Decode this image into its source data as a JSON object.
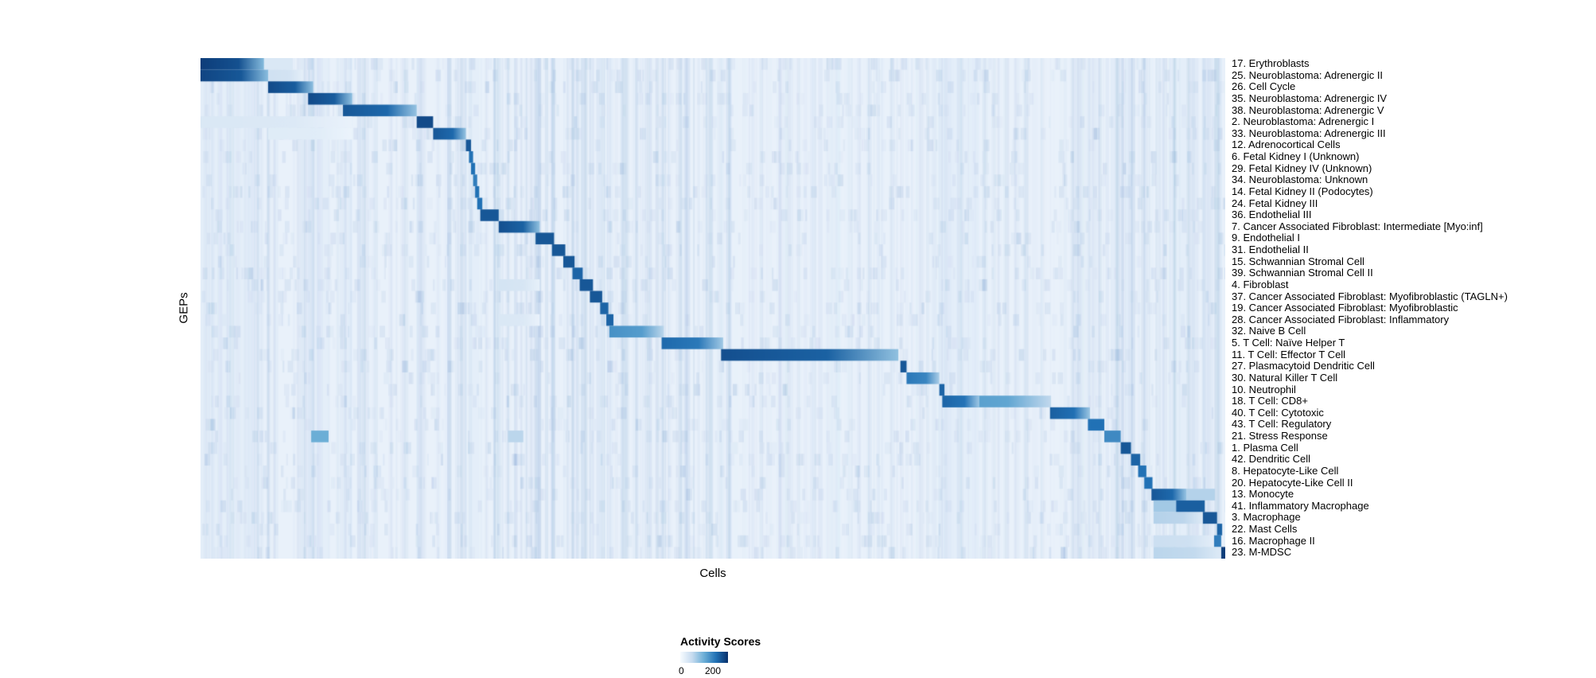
{
  "figure": {
    "background": "#ffffff"
  },
  "chart_data": {
    "type": "heatmap",
    "title": "",
    "xlabel": "Cells",
    "ylabel": "GEPs",
    "grid": false,
    "legend_position": "bottom",
    "background_color": "#eef4fb",
    "colorbar": {
      "title": "Activity Scores",
      "min": "0",
      "max": "200",
      "colors": [
        "#f7fbff",
        "#c6dbef",
        "#6baed6",
        "#2171b5",
        "#08306b"
      ]
    },
    "rows": [
      {
        "label": "17. Erythroblasts",
        "segments": [
          [
            0.0,
            0.062,
            0.95
          ],
          [
            0.062,
            0.09,
            0.15
          ]
        ]
      },
      {
        "label": "25. Neuroblastoma: Adrenergic II",
        "segments": [
          [
            0.0,
            0.066,
            0.92
          ],
          [
            0.066,
            0.1,
            0.2
          ]
        ]
      },
      {
        "label": "26. Cell Cycle",
        "segments": [
          [
            0.066,
            0.11,
            0.9
          ]
        ]
      },
      {
        "label": "35. Neuroblastoma: Adrenergic IV",
        "segments": [
          [
            0.105,
            0.148,
            0.9
          ]
        ]
      },
      {
        "label": "38. Neuroblastoma: Adrenergic V",
        "segments": [
          [
            0.139,
            0.211,
            0.85
          ]
        ]
      },
      {
        "label": "2. Neuroblastoma: Adrenergic I",
        "segments": [
          [
            0.211,
            0.227,
            0.9
          ],
          [
            0.0,
            0.148,
            0.15
          ]
        ]
      },
      {
        "label": "33. Neuroblastoma: Adrenergic III",
        "segments": [
          [
            0.227,
            0.259,
            0.85
          ],
          [
            0.066,
            0.148,
            0.12
          ]
        ]
      },
      {
        "label": "12. Adrenocortical Cells",
        "segments": [
          [
            0.259,
            0.264,
            0.85
          ]
        ]
      },
      {
        "label": "6. Fetal Kidney I (Unknown)",
        "segments": [
          [
            0.262,
            0.266,
            0.75
          ]
        ]
      },
      {
        "label": "29. Fetal Kidney IV (Unknown)",
        "segments": [
          [
            0.264,
            0.268,
            0.75
          ]
        ]
      },
      {
        "label": "34. Neuroblastoma: Unknown",
        "segments": [
          [
            0.266,
            0.27,
            0.7
          ]
        ]
      },
      {
        "label": "14. Fetal Kidney II (Podocytes)",
        "segments": [
          [
            0.268,
            0.272,
            0.75
          ]
        ]
      },
      {
        "label": "24. Fetal Kidney III",
        "segments": [
          [
            0.27,
            0.275,
            0.75
          ]
        ]
      },
      {
        "label": "36. Endothelial III",
        "segments": [
          [
            0.273,
            0.291,
            0.85
          ]
        ]
      },
      {
        "label": "7. Cancer Associated Fibroblast: Intermediate [Myo:inf]",
        "segments": [
          [
            0.291,
            0.331,
            0.88
          ]
        ]
      },
      {
        "label": "9. Endothelial I",
        "segments": [
          [
            0.327,
            0.345,
            0.85
          ]
        ]
      },
      {
        "label": "31. Endothelial II",
        "segments": [
          [
            0.343,
            0.356,
            0.85
          ]
        ]
      },
      {
        "label": "15. Schwannian Stromal Cell",
        "segments": [
          [
            0.354,
            0.365,
            0.85
          ]
        ]
      },
      {
        "label": "39. Schwannian Stromal Cell II",
        "segments": [
          [
            0.363,
            0.373,
            0.8
          ]
        ]
      },
      {
        "label": "4. Fibroblast",
        "segments": [
          [
            0.37,
            0.383,
            0.85
          ],
          [
            0.291,
            0.331,
            0.18
          ]
        ]
      },
      {
        "label": "37. Cancer Associated Fibroblast: Myofibroblastic (TAGLN+)",
        "segments": [
          [
            0.38,
            0.392,
            0.85
          ]
        ]
      },
      {
        "label": "19. Cancer Associated Fibroblast: Myofibroblastic",
        "segments": [
          [
            0.39,
            0.398,
            0.8
          ]
        ]
      },
      {
        "label": "28. Cancer Associated Fibroblast: Inflammatory",
        "segments": [
          [
            0.396,
            0.403,
            0.8
          ],
          [
            0.291,
            0.331,
            0.15
          ]
        ]
      },
      {
        "label": "32. Naive B Cell",
        "segments": [
          [
            0.399,
            0.452,
            0.62
          ]
        ]
      },
      {
        "label": "5. T Cell: Naïve Helper T",
        "segments": [
          [
            0.45,
            0.51,
            0.78
          ]
        ]
      },
      {
        "label": "11. T Cell: Effector T Cell",
        "segments": [
          [
            0.508,
            0.681,
            0.88
          ]
        ]
      },
      {
        "label": "27. Plasmacytoid Dendritic Cell",
        "segments": [
          [
            0.683,
            0.689,
            0.85
          ]
        ]
      },
      {
        "label": "30. Natural Killer T Cell",
        "segments": [
          [
            0.689,
            0.721,
            0.72
          ]
        ]
      },
      {
        "label": "10. Neutrophil",
        "segments": [
          [
            0.721,
            0.726,
            0.8
          ]
        ]
      },
      {
        "label": "18. T Cell: CD8+",
        "segments": [
          [
            0.724,
            0.83,
            0.58
          ],
          [
            0.724,
            0.76,
            0.8
          ]
        ]
      },
      {
        "label": "40. T Cell: Cytotoxic",
        "segments": [
          [
            0.829,
            0.868,
            0.82
          ]
        ]
      },
      {
        "label": "43. T Cell: Regulatory",
        "segments": [
          [
            0.866,
            0.882,
            0.75
          ]
        ]
      },
      {
        "label": "21. Stress Response",
        "segments": [
          [
            0.882,
            0.898,
            0.65
          ],
          [
            0.108,
            0.125,
            0.5
          ],
          [
            0.3,
            0.315,
            0.28
          ]
        ]
      },
      {
        "label": "1. Plasma Cell",
        "segments": [
          [
            0.898,
            0.908,
            0.85
          ]
        ]
      },
      {
        "label": "42. Dendritic Cell",
        "segments": [
          [
            0.908,
            0.917,
            0.8
          ]
        ]
      },
      {
        "label": "8. Hepatocyte-Like Cell",
        "segments": [
          [
            0.915,
            0.923,
            0.75
          ]
        ]
      },
      {
        "label": "20. Hepatocyte-Like Cell II",
        "segments": [
          [
            0.921,
            0.929,
            0.75
          ]
        ]
      },
      {
        "label": "13. Monocyte",
        "segments": [
          [
            0.928,
            0.962,
            0.85
          ],
          [
            0.962,
            0.99,
            0.3
          ]
        ]
      },
      {
        "label": "41. Inflammatory Macrophage",
        "segments": [
          [
            0.952,
            0.98,
            0.82
          ],
          [
            0.93,
            0.952,
            0.35
          ]
        ]
      },
      {
        "label": "3. Macrophage",
        "segments": [
          [
            0.978,
            0.992,
            0.85
          ],
          [
            0.93,
            0.978,
            0.3
          ]
        ]
      },
      {
        "label": "22. Mast Cells",
        "segments": [
          [
            0.992,
            0.997,
            0.8
          ]
        ]
      },
      {
        "label": "16. Macrophage II",
        "segments": [
          [
            0.989,
            0.996,
            0.7
          ],
          [
            0.93,
            0.989,
            0.22
          ]
        ]
      },
      {
        "label": "23. M-MDSC",
        "segments": [
          [
            0.996,
            1.0,
            0.95
          ],
          [
            0.93,
            0.996,
            0.28
          ]
        ]
      }
    ]
  }
}
